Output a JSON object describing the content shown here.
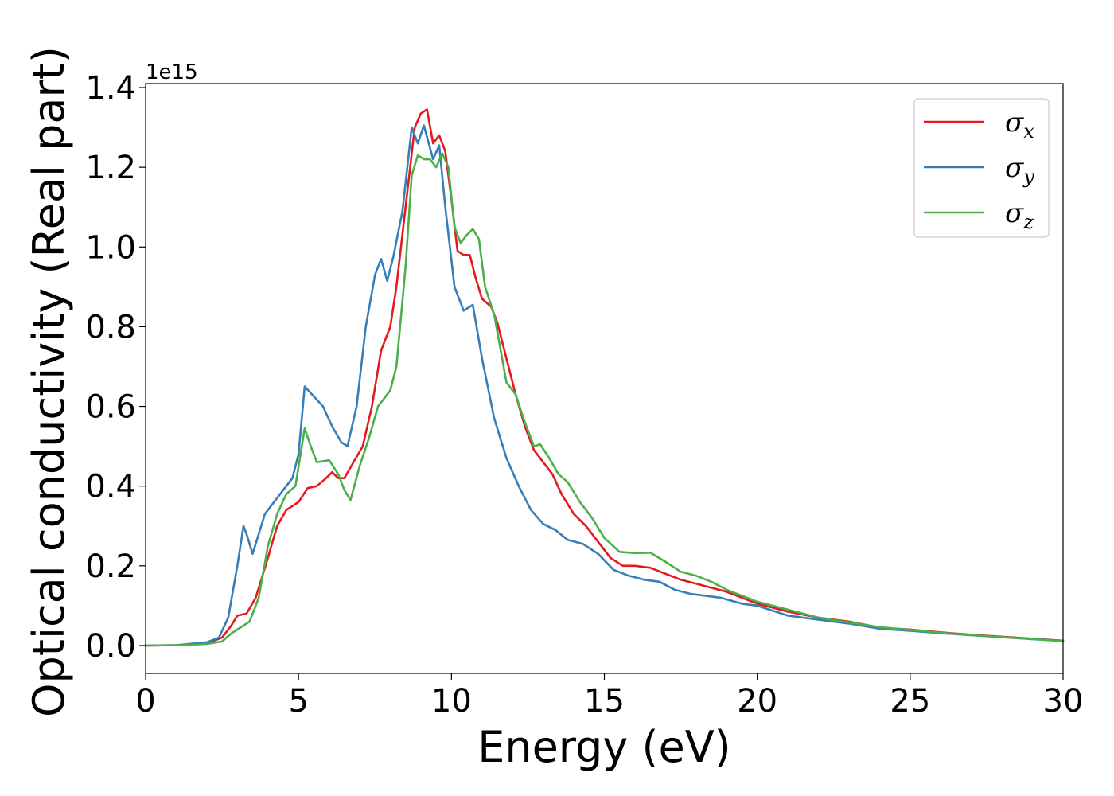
{
  "chart_data": {
    "type": "line",
    "title": "",
    "xlabel": "Energy (eV)",
    "ylabel": "Optical conductivity (Real part)",
    "y_offset_label": "1e15",
    "y_scale": 1000000000000000.0,
    "xlim": [
      0,
      30
    ],
    "ylim": [
      -0.07,
      1.41
    ],
    "x_ticks": [
      0,
      5,
      10,
      15,
      20,
      25,
      30
    ],
    "x_tick_labels": [
      "0",
      "5",
      "10",
      "15",
      "20",
      "25",
      "30"
    ],
    "y_ticks": [
      0.0,
      0.2,
      0.4,
      0.6,
      0.8,
      1.0,
      1.2,
      1.4
    ],
    "y_tick_labels": [
      "0.0",
      "0.2",
      "0.4",
      "0.6",
      "0.8",
      "1.0",
      "1.2",
      "1.4"
    ],
    "grid": false,
    "legend_position": "top-right",
    "series": [
      {
        "name": "σx",
        "legend_base": "σ",
        "legend_sub": "x",
        "color": "#e41a1c",
        "points": [
          [
            0,
            0
          ],
          [
            1,
            0.001
          ],
          [
            2,
            0.005
          ],
          [
            2.5,
            0.02
          ],
          [
            2.8,
            0.05
          ],
          [
            3.0,
            0.075
          ],
          [
            3.3,
            0.08
          ],
          [
            3.6,
            0.12
          ],
          [
            4.0,
            0.22
          ],
          [
            4.3,
            0.3
          ],
          [
            4.6,
            0.34
          ],
          [
            5.0,
            0.36
          ],
          [
            5.3,
            0.395
          ],
          [
            5.6,
            0.4
          ],
          [
            5.9,
            0.42
          ],
          [
            6.1,
            0.435
          ],
          [
            6.3,
            0.42
          ],
          [
            6.5,
            0.42
          ],
          [
            6.8,
            0.46
          ],
          [
            7.1,
            0.5
          ],
          [
            7.4,
            0.6
          ],
          [
            7.7,
            0.74
          ],
          [
            8.0,
            0.8
          ],
          [
            8.2,
            0.9
          ],
          [
            8.5,
            1.1
          ],
          [
            8.8,
            1.3
          ],
          [
            9.0,
            1.335
          ],
          [
            9.2,
            1.345
          ],
          [
            9.4,
            1.26
          ],
          [
            9.6,
            1.28
          ],
          [
            9.8,
            1.24
          ],
          [
            10.0,
            1.12
          ],
          [
            10.2,
            0.99
          ],
          [
            10.4,
            0.98
          ],
          [
            10.6,
            0.98
          ],
          [
            10.8,
            0.92
          ],
          [
            11.0,
            0.87
          ],
          [
            11.3,
            0.85
          ],
          [
            11.5,
            0.81
          ],
          [
            11.8,
            0.72
          ],
          [
            12.1,
            0.63
          ],
          [
            12.4,
            0.55
          ],
          [
            12.7,
            0.49
          ],
          [
            13.0,
            0.46
          ],
          [
            13.3,
            0.43
          ],
          [
            13.6,
            0.38
          ],
          [
            14.0,
            0.33
          ],
          [
            14.4,
            0.3
          ],
          [
            14.8,
            0.26
          ],
          [
            15.2,
            0.22
          ],
          [
            15.6,
            0.2
          ],
          [
            16.0,
            0.2
          ],
          [
            16.5,
            0.195
          ],
          [
            17.0,
            0.18
          ],
          [
            17.5,
            0.165
          ],
          [
            18.0,
            0.155
          ],
          [
            18.5,
            0.145
          ],
          [
            19.0,
            0.135
          ],
          [
            19.5,
            0.12
          ],
          [
            20.0,
            0.105
          ],
          [
            21.0,
            0.085
          ],
          [
            22.0,
            0.07
          ],
          [
            23.0,
            0.06
          ],
          [
            24.0,
            0.045
          ],
          [
            25.0,
            0.04
          ],
          [
            26.0,
            0.033
          ],
          [
            27.0,
            0.027
          ],
          [
            28.0,
            0.022
          ],
          [
            29.0,
            0.017
          ],
          [
            30.0,
            0.012
          ]
        ]
      },
      {
        "name": "σy",
        "legend_base": "σ",
        "legend_sub": "y",
        "color": "#377eb8",
        "points": [
          [
            0,
            0
          ],
          [
            1,
            0.001
          ],
          [
            2,
            0.008
          ],
          [
            2.4,
            0.02
          ],
          [
            2.7,
            0.07
          ],
          [
            3.0,
            0.2
          ],
          [
            3.2,
            0.3
          ],
          [
            3.3,
            0.28
          ],
          [
            3.5,
            0.23
          ],
          [
            3.7,
            0.28
          ],
          [
            3.9,
            0.33
          ],
          [
            4.2,
            0.36
          ],
          [
            4.5,
            0.39
          ],
          [
            4.8,
            0.42
          ],
          [
            5.0,
            0.48
          ],
          [
            5.2,
            0.65
          ],
          [
            5.5,
            0.625
          ],
          [
            5.8,
            0.6
          ],
          [
            6.1,
            0.55
          ],
          [
            6.4,
            0.51
          ],
          [
            6.6,
            0.5
          ],
          [
            6.9,
            0.6
          ],
          [
            7.2,
            0.8
          ],
          [
            7.5,
            0.93
          ],
          [
            7.7,
            0.97
          ],
          [
            7.9,
            0.915
          ],
          [
            8.1,
            0.975
          ],
          [
            8.4,
            1.09
          ],
          [
            8.7,
            1.3
          ],
          [
            8.9,
            1.26
          ],
          [
            9.1,
            1.305
          ],
          [
            9.4,
            1.22
          ],
          [
            9.6,
            1.255
          ],
          [
            9.8,
            1.1
          ],
          [
            10.1,
            0.9
          ],
          [
            10.4,
            0.84
          ],
          [
            10.7,
            0.855
          ],
          [
            11.0,
            0.72
          ],
          [
            11.4,
            0.57
          ],
          [
            11.8,
            0.47
          ],
          [
            12.2,
            0.4
          ],
          [
            12.6,
            0.34
          ],
          [
            13.0,
            0.305
          ],
          [
            13.4,
            0.29
          ],
          [
            13.8,
            0.265
          ],
          [
            14.3,
            0.255
          ],
          [
            14.8,
            0.23
          ],
          [
            15.3,
            0.19
          ],
          [
            15.8,
            0.175
          ],
          [
            16.3,
            0.165
          ],
          [
            16.8,
            0.16
          ],
          [
            17.3,
            0.14
          ],
          [
            17.8,
            0.13
          ],
          [
            18.3,
            0.125
          ],
          [
            18.8,
            0.12
          ],
          [
            19.5,
            0.105
          ],
          [
            20.0,
            0.1
          ],
          [
            21.0,
            0.075
          ],
          [
            22.0,
            0.065
          ],
          [
            23.0,
            0.055
          ],
          [
            24.0,
            0.042
          ],
          [
            25.0,
            0.037
          ],
          [
            26.0,
            0.031
          ],
          [
            27.0,
            0.026
          ],
          [
            28.0,
            0.021
          ],
          [
            29.0,
            0.016
          ],
          [
            30.0,
            0.012
          ]
        ]
      },
      {
        "name": "σz",
        "legend_base": "σ",
        "legend_sub": "z",
        "color": "#4daf4a",
        "points": [
          [
            0,
            0
          ],
          [
            1,
            0.001
          ],
          [
            2,
            0.004
          ],
          [
            2.5,
            0.01
          ],
          [
            2.8,
            0.03
          ],
          [
            3.1,
            0.045
          ],
          [
            3.4,
            0.06
          ],
          [
            3.7,
            0.12
          ],
          [
            4.0,
            0.25
          ],
          [
            4.3,
            0.33
          ],
          [
            4.6,
            0.38
          ],
          [
            4.9,
            0.4
          ],
          [
            5.2,
            0.545
          ],
          [
            5.4,
            0.5
          ],
          [
            5.6,
            0.46
          ],
          [
            6.0,
            0.465
          ],
          [
            6.3,
            0.43
          ],
          [
            6.5,
            0.39
          ],
          [
            6.7,
            0.365
          ],
          [
            7.0,
            0.45
          ],
          [
            7.3,
            0.52
          ],
          [
            7.6,
            0.6
          ],
          [
            8.0,
            0.64
          ],
          [
            8.2,
            0.7
          ],
          [
            8.5,
            0.95
          ],
          [
            8.7,
            1.18
          ],
          [
            8.9,
            1.23
          ],
          [
            9.1,
            1.22
          ],
          [
            9.3,
            1.22
          ],
          [
            9.5,
            1.2
          ],
          [
            9.7,
            1.235
          ],
          [
            9.9,
            1.2
          ],
          [
            10.1,
            1.05
          ],
          [
            10.3,
            1.01
          ],
          [
            10.5,
            1.03
          ],
          [
            10.7,
            1.045
          ],
          [
            10.9,
            1.02
          ],
          [
            11.1,
            0.9
          ],
          [
            11.4,
            0.83
          ],
          [
            11.8,
            0.66
          ],
          [
            12.1,
            0.63
          ],
          [
            12.4,
            0.56
          ],
          [
            12.7,
            0.5
          ],
          [
            12.9,
            0.505
          ],
          [
            13.2,
            0.47
          ],
          [
            13.5,
            0.43
          ],
          [
            13.8,
            0.41
          ],
          [
            14.2,
            0.36
          ],
          [
            14.6,
            0.32
          ],
          [
            15.0,
            0.27
          ],
          [
            15.5,
            0.235
          ],
          [
            16.0,
            0.232
          ],
          [
            16.5,
            0.233
          ],
          [
            17.0,
            0.21
          ],
          [
            17.5,
            0.185
          ],
          [
            18.0,
            0.175
          ],
          [
            18.5,
            0.16
          ],
          [
            19.0,
            0.14
          ],
          [
            19.5,
            0.125
          ],
          [
            20.0,
            0.11
          ],
          [
            21.0,
            0.09
          ],
          [
            22.0,
            0.07
          ],
          [
            23.0,
            0.058
          ],
          [
            24.0,
            0.046
          ],
          [
            25.0,
            0.039
          ],
          [
            26.0,
            0.032
          ],
          [
            27.0,
            0.026
          ],
          [
            28.0,
            0.021
          ],
          [
            29.0,
            0.016
          ],
          [
            30.0,
            0.011
          ]
        ]
      }
    ]
  }
}
